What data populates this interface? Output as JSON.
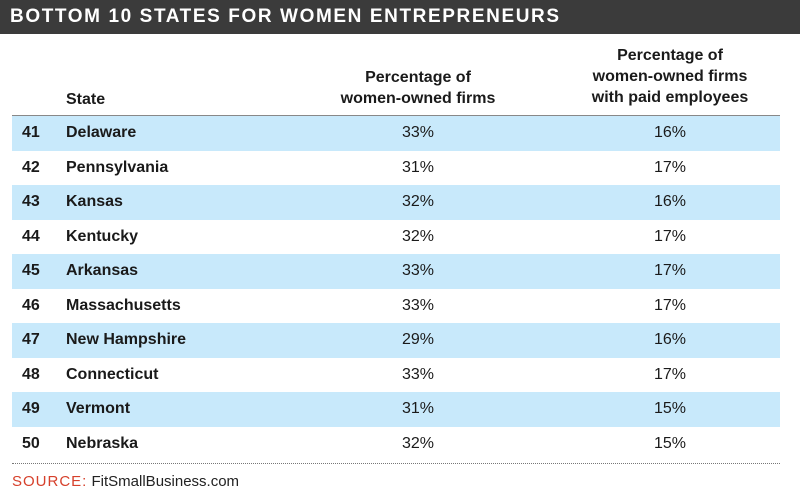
{
  "title": "BOTTOM 10 STATES FOR WOMEN ENTREPRENEURS",
  "headers": {
    "state": "State",
    "pct_line1": "Percentage of",
    "pct_line2": "women-owned firms",
    "paid_line1": "Percentage of",
    "paid_line2": "women-owned firms",
    "paid_line3": "with paid employees"
  },
  "chart_data": {
    "type": "table",
    "title": "BOTTOM 10 STATES FOR WOMEN ENTREPRENEURS",
    "columns": [
      "",
      "State",
      "Percentage of women-owned firms",
      "Percentage of women-owned firms with paid employees"
    ],
    "rows": [
      {
        "rank": "41",
        "state": "Delaware",
        "pct": "33%",
        "paid": "16%"
      },
      {
        "rank": "42",
        "state": "Pennsylvania",
        "pct": "31%",
        "paid": "17%"
      },
      {
        "rank": "43",
        "state": "Kansas",
        "pct": "32%",
        "paid": "16%"
      },
      {
        "rank": "44",
        "state": "Kentucky",
        "pct": "32%",
        "paid": "17%"
      },
      {
        "rank": "45",
        "state": "Arkansas",
        "pct": "33%",
        "paid": "17%"
      },
      {
        "rank": "46",
        "state": "Massachusetts",
        "pct": "33%",
        "paid": "17%"
      },
      {
        "rank": "47",
        "state": "New Hampshire",
        "pct": "29%",
        "paid": "16%"
      },
      {
        "rank": "48",
        "state": "Connecticut",
        "pct": "33%",
        "paid": "17%"
      },
      {
        "rank": "49",
        "state": "Vermont",
        "pct": "31%",
        "paid": "15%"
      },
      {
        "rank": "50",
        "state": "Nebraska",
        "pct": "32%",
        "paid": "15%"
      }
    ]
  },
  "source": {
    "label": "SOURCE:",
    "name": "FitSmallBusiness.com"
  },
  "colors": {
    "title_bar": "#3b3b3b",
    "row_shade": "#c8e9fb",
    "source_label": "#d6402b"
  }
}
